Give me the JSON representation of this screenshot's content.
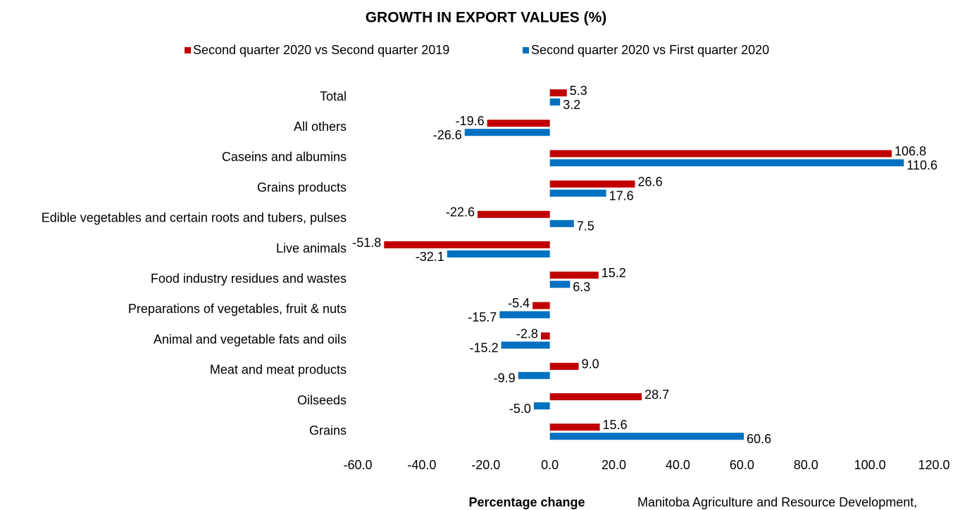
{
  "chart_data": {
    "type": "hbar",
    "title": "GROWTH IN EXPORT VALUES (%)",
    "x_label": "Percentage change",
    "source": "Manitoba Agriculture and Resource Development,",
    "legend": "top",
    "categories": [
      "Total",
      "All others",
      "Caseins  and albumins",
      "Grains products",
      "Edible vegetables and certain roots and tubers, pulses",
      "Live animals",
      "Food industry residues and wastes",
      "Preparations of vegetables, fruit & nuts",
      "Animal and vegetable fats and oils",
      "Meat and meat products",
      "Oilseeds",
      "Grains"
    ],
    "series": [
      {
        "name": "Second quarter 2020 vs Second quarter 2019",
        "color": "#c00000",
        "values": [
          5.3,
          -19.6,
          106.8,
          26.6,
          -22.6,
          -51.8,
          15.2,
          -5.4,
          -2.8,
          9.0,
          28.7,
          15.6
        ],
        "value_labels": [
          "5.3",
          "-19.6",
          "106.8",
          "26.6",
          "-22.6",
          "-51.8",
          "15.2",
          "-5.4",
          "-2.8",
          "9.0",
          "28.7",
          "15.6"
        ]
      },
      {
        "name": "Second quarter 2020 vs First quarter 2020",
        "color": "#0070c0",
        "values": [
          3.2,
          -26.6,
          110.6,
          17.6,
          7.5,
          -32.1,
          6.3,
          -15.7,
          -15.2,
          -9.9,
          -5.0,
          60.6
        ],
        "value_labels": [
          "3.2",
          "-26.6",
          "110.6",
          "17.6",
          "7.5",
          "-32.1",
          "6.3",
          "-15.7",
          "-15.2",
          "-9.9",
          "-5.0",
          "60.6"
        ]
      }
    ],
    "xlim": [
      -60,
      120
    ],
    "xticks": [
      {
        "value": -60,
        "label": "-60.0"
      },
      {
        "value": -40,
        "label": "-40.0"
      },
      {
        "value": -20,
        "label": "-20.0"
      },
      {
        "value": 0,
        "label": "0.0"
      },
      {
        "value": 20,
        "label": "20.0"
      },
      {
        "value": 40,
        "label": "40.0"
      },
      {
        "value": 60,
        "label": "60.0"
      },
      {
        "value": 80,
        "label": "80.0"
      },
      {
        "value": 100,
        "label": "100.0"
      },
      {
        "value": 120,
        "label": "120.0"
      }
    ]
  }
}
